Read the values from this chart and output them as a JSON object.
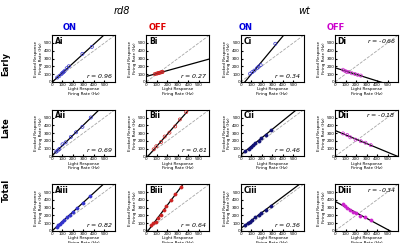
{
  "title_rd8": "rd8",
  "title_wt": "wt",
  "col_label_colors": {
    "ON": "#0000dd",
    "OFF_rd8": "#dd0000",
    "OFF_wt": "#cc00cc"
  },
  "r_values": [
    [
      0.96,
      0.27,
      0.34,
      -0.66
    ],
    [
      0.69,
      0.61,
      0.46,
      -0.18
    ],
    [
      0.82,
      0.64,
      0.36,
      -0.34
    ]
  ],
  "r_positions": [
    [
      "bottom_right",
      "bottom_right",
      "bottom_right",
      "top_right"
    ],
    [
      "bottom_right",
      "bottom_right",
      "bottom_right",
      "top_right"
    ],
    [
      "bottom_right",
      "bottom_right",
      "bottom_right",
      "top_right"
    ]
  ],
  "xlabel": "Light Response\nFiring Rate (Hz)",
  "ylabel": "Evoked Response\nFiring Rate (Hz)",
  "plots": {
    "Ai": {
      "x": [
        50,
        70,
        90,
        100,
        110,
        120,
        140,
        160,
        290,
        380
      ],
      "y": [
        55,
        75,
        100,
        115,
        125,
        140,
        175,
        200,
        360,
        450
      ],
      "filled": false,
      "color": "#3333cc"
    },
    "Bi": {
      "x": [
        80,
        95,
        105,
        115,
        120,
        130,
        140,
        150,
        155
      ],
      "y": [
        100,
        105,
        108,
        112,
        115,
        118,
        122,
        125,
        128
      ],
      "filled": false,
      "color": "#cc2222"
    },
    "Ci": {
      "x": [
        90,
        110,
        130,
        155,
        170,
        190,
        330
      ],
      "y": [
        105,
        125,
        145,
        175,
        195,
        215,
        490
      ],
      "filled": false,
      "color": "#3333cc"
    },
    "Di": {
      "x": [
        75,
        95,
        110,
        130,
        160,
        190,
        215,
        245
      ],
      "y": [
        155,
        140,
        130,
        125,
        110,
        100,
        90,
        80
      ],
      "filled": false,
      "color": "#cc22cc"
    },
    "Aii": {
      "x": [
        40,
        55,
        70,
        100,
        130,
        180,
        230,
        290,
        370
      ],
      "y": [
        60,
        75,
        95,
        155,
        180,
        250,
        310,
        380,
        500
      ],
      "filled": false,
      "color": "#3333cc"
    },
    "Bii": {
      "x": [
        70,
        95,
        140,
        175,
        220,
        275,
        320,
        380
      ],
      "y": [
        90,
        130,
        185,
        255,
        305,
        385,
        475,
        570
      ],
      "filled": false,
      "color": "#cc2222"
    },
    "Cii": {
      "x": [
        45,
        75,
        95,
        115,
        140,
        170,
        195,
        240,
        285
      ],
      "y": [
        75,
        95,
        125,
        145,
        175,
        195,
        240,
        270,
        340
      ],
      "filled": true,
      "color": "#111177"
    },
    "Dii": {
      "x": [
        75,
        115,
        145,
        195,
        245,
        290,
        340
      ],
      "y": [
        295,
        275,
        245,
        215,
        195,
        175,
        145
      ],
      "filled": false,
      "color": "#cc22cc"
    },
    "Aiii": {
      "x": [
        45,
        60,
        75,
        95,
        115,
        145,
        175,
        200,
        240,
        295,
        360
      ],
      "y": [
        55,
        75,
        90,
        115,
        145,
        175,
        210,
        240,
        295,
        360,
        445
      ],
      "filled": true,
      "color": "#3333cc"
    },
    "Biii": {
      "x": [
        45,
        65,
        90,
        110,
        140,
        165,
        190,
        235,
        275,
        330
      ],
      "y": [
        70,
        95,
        120,
        165,
        210,
        265,
        315,
        400,
        475,
        560
      ],
      "filled": true,
      "color": "#cc2222"
    },
    "Ciii": {
      "x": [
        45,
        70,
        90,
        110,
        140,
        170,
        190,
        240,
        285
      ],
      "y": [
        75,
        100,
        120,
        145,
        180,
        200,
        230,
        270,
        320
      ],
      "filled": true,
      "color": "#111177"
    },
    "Diii": {
      "x": [
        75,
        95,
        115,
        145,
        175,
        195,
        240,
        290,
        340
      ],
      "y": [
        340,
        315,
        295,
        270,
        245,
        225,
        195,
        175,
        145
      ],
      "filled": true,
      "color": "#cc22cc"
    }
  }
}
